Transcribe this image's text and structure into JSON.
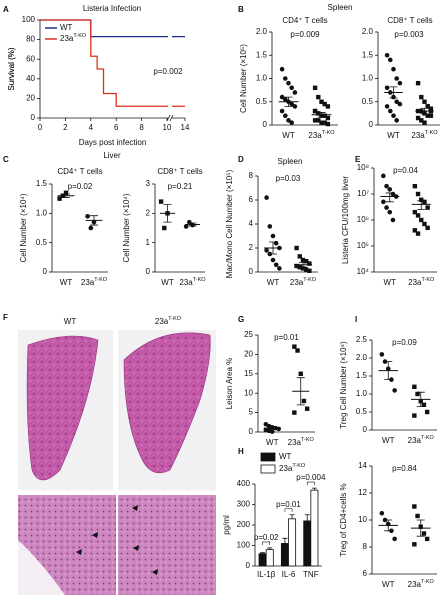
{
  "chart_data": [
    {
      "type": "line",
      "label": "A",
      "title": "Listeria Infection",
      "xlabel": "Days post infection",
      "ylabel": "Survival (%)",
      "annotation": "p=0.002",
      "xlim": [
        0,
        14
      ],
      "xticks": [
        0,
        2,
        4,
        6,
        8,
        10,
        14
      ],
      "ylim": [
        0,
        100
      ],
      "yticks": [
        0,
        20,
        40,
        60,
        80,
        100
      ],
      "legend": "upper-left",
      "series": [
        {
          "name": "WT",
          "color": "#1f2a8a",
          "x": [
            0,
            4,
            4,
            14
          ],
          "values": [
            100,
            100,
            83,
            83
          ]
        },
        {
          "name": {
            "base": "23a",
            "sup": "T-KO"
          },
          "color": "#e0301e",
          "x": [
            0,
            4,
            4,
            4.5,
            4.5,
            5,
            5,
            6,
            6,
            14
          ],
          "values": [
            100,
            100,
            63,
            63,
            50,
            50,
            25,
            25,
            12,
            12
          ]
        }
      ]
    },
    {
      "type": "dot",
      "label": "B",
      "group_title": "Spleen",
      "title": "CD4⁺ T cells",
      "ylabel": "Cell Number (×10⁵)",
      "annotation": "p=0.009",
      "categories": [
        "WT",
        {
          "base": "23a",
          "sup": "T-KO"
        }
      ],
      "markers": [
        "circle",
        "square"
      ],
      "ylim": [
        0,
        2
      ],
      "yticks": [
        0,
        0.5,
        {
          "value": 1,
          "label": "1.0"
        },
        1.5,
        {
          "value": 2,
          "label": "2.0"
        }
      ],
      "values": [
        [
          1.2,
          1.0,
          0.9,
          0.8,
          0.7,
          0.6,
          0.55,
          0.5,
          0.45,
          0.4,
          0.3,
          0.2,
          0.1,
          0.05
        ],
        [
          0.8,
          0.6,
          0.5,
          0.45,
          0.4,
          0.3,
          0.25,
          0.2,
          0.2,
          0.15,
          0.1,
          0.1,
          0.05,
          0.05,
          0.02,
          0.3
        ]
      ],
      "means": [
        0.5,
        0.22
      ],
      "errors": [
        0.1,
        0.05
      ]
    },
    {
      "type": "dot",
      "title": "CD8⁺ T cells",
      "annotation": "p=0.003",
      "categories": [
        "WT",
        {
          "base": "23a",
          "sup": "T-KO"
        }
      ],
      "markers": [
        "circle",
        "square"
      ],
      "ylim": [
        0,
        2
      ],
      "yticks": [
        0,
        0.5,
        {
          "value": 1,
          "label": "1.0"
        },
        1.5,
        {
          "value": 2,
          "label": "2.0"
        }
      ],
      "values": [
        [
          1.5,
          1.4,
          1.2,
          1.0,
          0.9,
          0.8,
          0.7,
          0.6,
          0.5,
          0.45,
          0.4,
          0.3,
          0.2,
          0.1
        ],
        [
          0.9,
          0.6,
          0.5,
          0.4,
          0.35,
          0.3,
          0.3,
          0.25,
          0.2,
          0.2,
          0.15,
          0.1,
          0.05,
          0.4,
          0.3
        ]
      ],
      "means": [
        0.7,
        0.3
      ],
      "errors": [
        0.12,
        0.06
      ]
    },
    {
      "type": "dot",
      "label": "C",
      "group_title": "Liver",
      "title": "CD4⁺ T cells",
      "ylabel": "Cell Number (×10⁴)",
      "annotation": "p=0.02",
      "categories": [
        "WT",
        {
          "base": "23a",
          "sup": "T-KO"
        }
      ],
      "markers": [
        "square",
        "circle"
      ],
      "ylim": [
        0,
        1.5
      ],
      "yticks": [
        0,
        0.5,
        {
          "value": 1,
          "label": "1.0"
        },
        1.5
      ],
      "values": [
        [
          1.25,
          1.3,
          1.35
        ],
        [
          0.95,
          0.75,
          0.85
        ]
      ],
      "means": [
        1.3,
        0.88
      ],
      "errors": [
        0.03,
        0.08
      ]
    },
    {
      "type": "dot",
      "title": "CD8⁺ T cells",
      "ylabel": "Cell Number (×10⁴)",
      "annotation": "p=0.21",
      "categories": [
        "WT",
        {
          "base": "23a",
          "sup": "T-KO"
        }
      ],
      "markers": [
        "square",
        "circle"
      ],
      "ylim": [
        0,
        3
      ],
      "yticks": [
        0,
        1,
        2,
        3
      ],
      "values": [
        [
          2.4,
          1.5,
          2.0
        ],
        [
          1.55,
          1.7,
          1.6
        ]
      ],
      "means": [
        2.0,
        1.62
      ],
      "errors": [
        0.3,
        0.05
      ]
    },
    {
      "type": "dot",
      "label": "D",
      "title": "Spleen",
      "ylabel": "Mac/Mono Cell Number (×10⁵)",
      "annotation": "p=0.03",
      "categories": [
        "WT",
        {
          "base": "23a",
          "sup": "T-KO"
        }
      ],
      "markers": [
        "circle",
        "square"
      ],
      "ylim": [
        0,
        8
      ],
      "yticks": [
        0,
        2,
        4,
        6,
        8
      ],
      "values": [
        [
          6.2,
          3.8,
          3.0,
          2.4,
          2.0,
          1.8,
          1.5,
          1.0,
          0.6,
          0.3
        ],
        [
          2.0,
          1.3,
          1.0,
          0.9,
          0.7,
          0.5,
          0.4,
          0.3,
          0.2,
          0.1
        ]
      ],
      "means": [
        2.0,
        0.6
      ],
      "errors": [
        0.5,
        0.2
      ]
    },
    {
      "type": "dot",
      "label": "E",
      "ylabel": "Listeria CFU/100mg liver",
      "annotation": "p=0.04",
      "log": true,
      "categories": [
        "WT",
        {
          "base": "23a",
          "sup": "T-KO"
        }
      ],
      "markers": [
        "circle",
        "square"
      ],
      "ylim": [
        10000,
        100000000
      ],
      "yticks": [
        {
          "value": 10000,
          "label": "10⁴"
        },
        {
          "value": 100000,
          "label": "10⁵"
        },
        {
          "value": 1000000,
          "label": "10⁶"
        },
        {
          "value": 10000000,
          "label": "10⁷"
        },
        {
          "value": 100000000,
          "label": "10⁸"
        }
      ],
      "values": [
        [
          50000000,
          20000000,
          15000000,
          10000000,
          8000000,
          5000000,
          3000000,
          2000000,
          1000000
        ],
        [
          20000000,
          10000000,
          6000000,
          5000000,
          3000000,
          2000000,
          1500000,
          1000000,
          700000,
          500000,
          400000,
          300000
        ]
      ],
      "means": [
        8000000,
        4000000
      ],
      "errors": [
        3000000,
        1500000
      ]
    },
    {
      "type": "image",
      "label": "F",
      "columns": [
        "WT",
        {
          "base": "23a",
          "sup": "T-KO"
        }
      ]
    },
    {
      "type": "dot",
      "label": "G",
      "ylabel": "Leison Area %",
      "annotation": "p=0.01",
      "categories": [
        "WT",
        {
          "base": "23a",
          "sup": "T-KO"
        }
      ],
      "markers": [
        "circle",
        "square"
      ],
      "ylim": [
        0,
        25
      ],
      "yticks": [
        0,
        5,
        10,
        15,
        20,
        25
      ],
      "values": [
        [
          2,
          1.5,
          1.2,
          1,
          0.8,
          0.5,
          0.3,
          0.1
        ],
        [
          22,
          21,
          15,
          8,
          6,
          5
        ]
      ],
      "means": [
        1,
        10.5
      ],
      "errors": [
        0.25,
        3.5
      ]
    },
    {
      "type": "bar",
      "label": "H",
      "ylabel": "pg/ml",
      "categories": [
        "IL-1β",
        "IL-6",
        "TNF"
      ],
      "annotations": [
        "p=0.02",
        "p=0.01",
        "p=0.004"
      ],
      "ylim": [
        0,
        400
      ],
      "yticks": [
        0,
        100,
        200,
        300,
        400
      ],
      "legend": "top",
      "series": [
        {
          "name": "WT",
          "color": "#111111",
          "values": [
            60,
            110,
            220
          ],
          "errors": [
            5,
            25,
            30
          ]
        },
        {
          "name": {
            "base": "23a",
            "sup": "T-KO"
          },
          "color": "#ffffff",
          "values": [
            80,
            230,
            370
          ],
          "errors": [
            8,
            20,
            10
          ]
        }
      ]
    },
    {
      "type": "dot",
      "label": "I",
      "ylabel": "Treg Cell Number (×10⁴)",
      "annotation": "p=0.09",
      "categories": [
        "WT",
        {
          "base": "23a",
          "sup": "T-KO"
        }
      ],
      "markers": [
        "circle",
        "square"
      ],
      "ylim": [
        0,
        2.5
      ],
      "yticks": [
        0,
        0.5,
        {
          "value": 1,
          "label": "1.0"
        },
        1.5,
        {
          "value": 2,
          "label": "2.0"
        },
        2.5
      ],
      "values": [
        [
          2.1,
          1.9,
          1.7,
          1.4,
          1.1
        ],
        [
          1.2,
          1.0,
          0.8,
          0.7,
          0.5,
          0.4
        ]
      ],
      "means": [
        1.65,
        0.85
      ],
      "errors": [
        0.25,
        0.2
      ]
    },
    {
      "type": "dot",
      "ylabel": "Treg of CD4+cells %",
      "annotation": "p=0.84",
      "categories": [
        "WT",
        {
          "base": "23a",
          "sup": "T-KO"
        }
      ],
      "markers": [
        "circle",
        "square"
      ],
      "ylim": [
        6,
        14
      ],
      "yticks": [
        6,
        8,
        10,
        12,
        14
      ],
      "values": [
        [
          10.5,
          10,
          9.7,
          9.2,
          8.6
        ],
        [
          11,
          10.3,
          9.5,
          9,
          8.6,
          8.2
        ]
      ],
      "means": [
        9.6,
        9.4
      ],
      "errors": [
        0.4,
        0.6
      ]
    }
  ]
}
